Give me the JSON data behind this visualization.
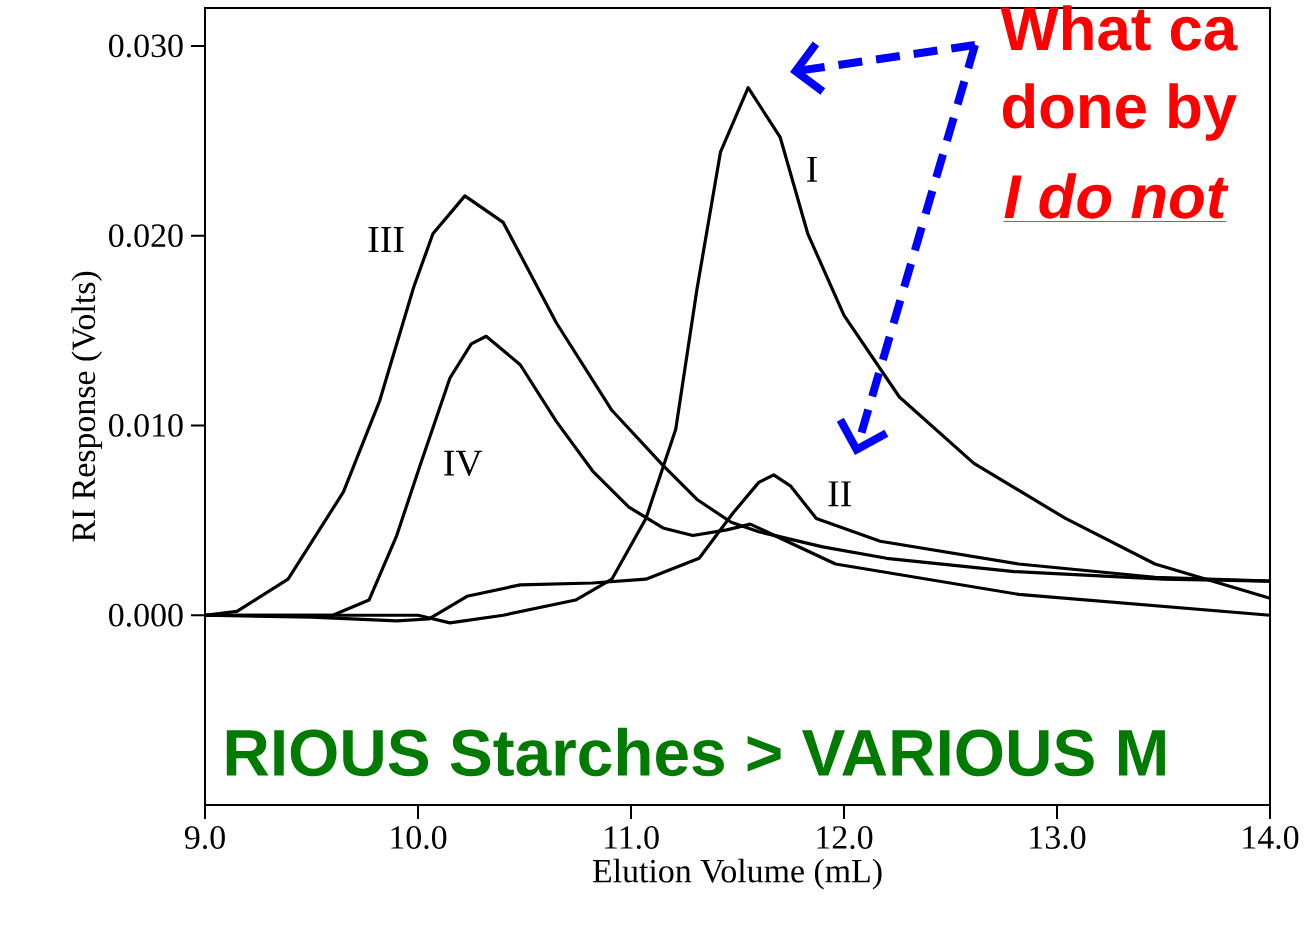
{
  "chart_data": {
    "type": "line",
    "xlabel": "Elution Volume (mL)",
    "ylabel": "RI Response (Volts)",
    "xlim": [
      9,
      14
    ],
    "ylim": [
      -0.01,
      0.032
    ],
    "xticks": [
      {
        "value": 9,
        "label": "9.0"
      },
      {
        "value": 10,
        "label": "10.0"
      },
      {
        "value": 11,
        "label": "11.0"
      },
      {
        "value": 12,
        "label": "12.0"
      },
      {
        "value": 13,
        "label": "13.0"
      },
      {
        "value": 14,
        "label": "14.0"
      }
    ],
    "yticks": [
      {
        "value": 0,
        "label": "0.000"
      },
      {
        "value": 0.01,
        "label": "0.010"
      },
      {
        "value": 0.02,
        "label": "0.020"
      },
      {
        "value": 0.03,
        "label": "0.030"
      }
    ],
    "grid": false,
    "legend": false,
    "marker": "none",
    "line_style": "solid",
    "series": [
      {
        "name": "I",
        "color": "#000000",
        "x": [
          9.0,
          10.0,
          10.15,
          10.4,
          10.74,
          10.91,
          11.07,
          11.21,
          11.31,
          11.42,
          11.55,
          11.7,
          11.83,
          12.0,
          12.26,
          12.61,
          13.04,
          13.46,
          14.0
        ],
        "values": [
          0.0,
          0.0,
          -0.0004,
          0.0,
          0.0008,
          0.0019,
          0.0051,
          0.0098,
          0.0172,
          0.0244,
          0.0278,
          0.0252,
          0.0201,
          0.0158,
          0.0115,
          0.008,
          0.0051,
          0.0027,
          0.0009
        ]
      },
      {
        "name": "II",
        "color": "#000000",
        "x": [
          9.0,
          9.5,
          9.9,
          10.05,
          10.23,
          10.48,
          10.82,
          11.07,
          11.32,
          11.48,
          11.6,
          11.67,
          11.75,
          11.87,
          12.17,
          12.82,
          13.46,
          14.0
        ],
        "values": [
          0.0,
          -0.0001,
          -0.0003,
          -0.0002,
          0.001,
          0.0016,
          0.0017,
          0.0019,
          0.003,
          0.0054,
          0.007,
          0.0074,
          0.0068,
          0.0051,
          0.0039,
          0.0027,
          0.002,
          0.0018
        ]
      },
      {
        "name": "III",
        "color": "#000000",
        "x": [
          9.0,
          9.15,
          9.39,
          9.65,
          9.82,
          9.98,
          10.07,
          10.22,
          10.4,
          10.65,
          10.91,
          11.15,
          11.31,
          11.47,
          11.6,
          11.9,
          12.2,
          12.8,
          13.5,
          14.0
        ],
        "values": [
          0.0,
          0.0002,
          0.0019,
          0.0065,
          0.0113,
          0.0173,
          0.0201,
          0.0221,
          0.0207,
          0.0154,
          0.0108,
          0.0079,
          0.0061,
          0.0049,
          0.0044,
          0.0036,
          0.003,
          0.0023,
          0.0019,
          0.0018
        ]
      },
      {
        "name": "IV",
        "color": "#000000",
        "x": [
          9.0,
          9.6,
          9.77,
          9.9,
          10.01,
          10.15,
          10.25,
          10.32,
          10.48,
          10.65,
          10.82,
          10.99,
          11.15,
          11.29,
          11.45,
          11.56,
          11.96,
          12.82,
          14.0
        ],
        "values": [
          0.0,
          0.0,
          0.0008,
          0.0042,
          0.0079,
          0.0125,
          0.0143,
          0.0147,
          0.0132,
          0.0102,
          0.0076,
          0.0057,
          0.0046,
          0.0042,
          0.0045,
          0.0048,
          0.0027,
          0.0011,
          0.0
        ]
      }
    ],
    "annotations": [
      "What ca",
      "done by",
      "I do not",
      "RIOUS Starches > VARIOUS M"
    ]
  }
}
